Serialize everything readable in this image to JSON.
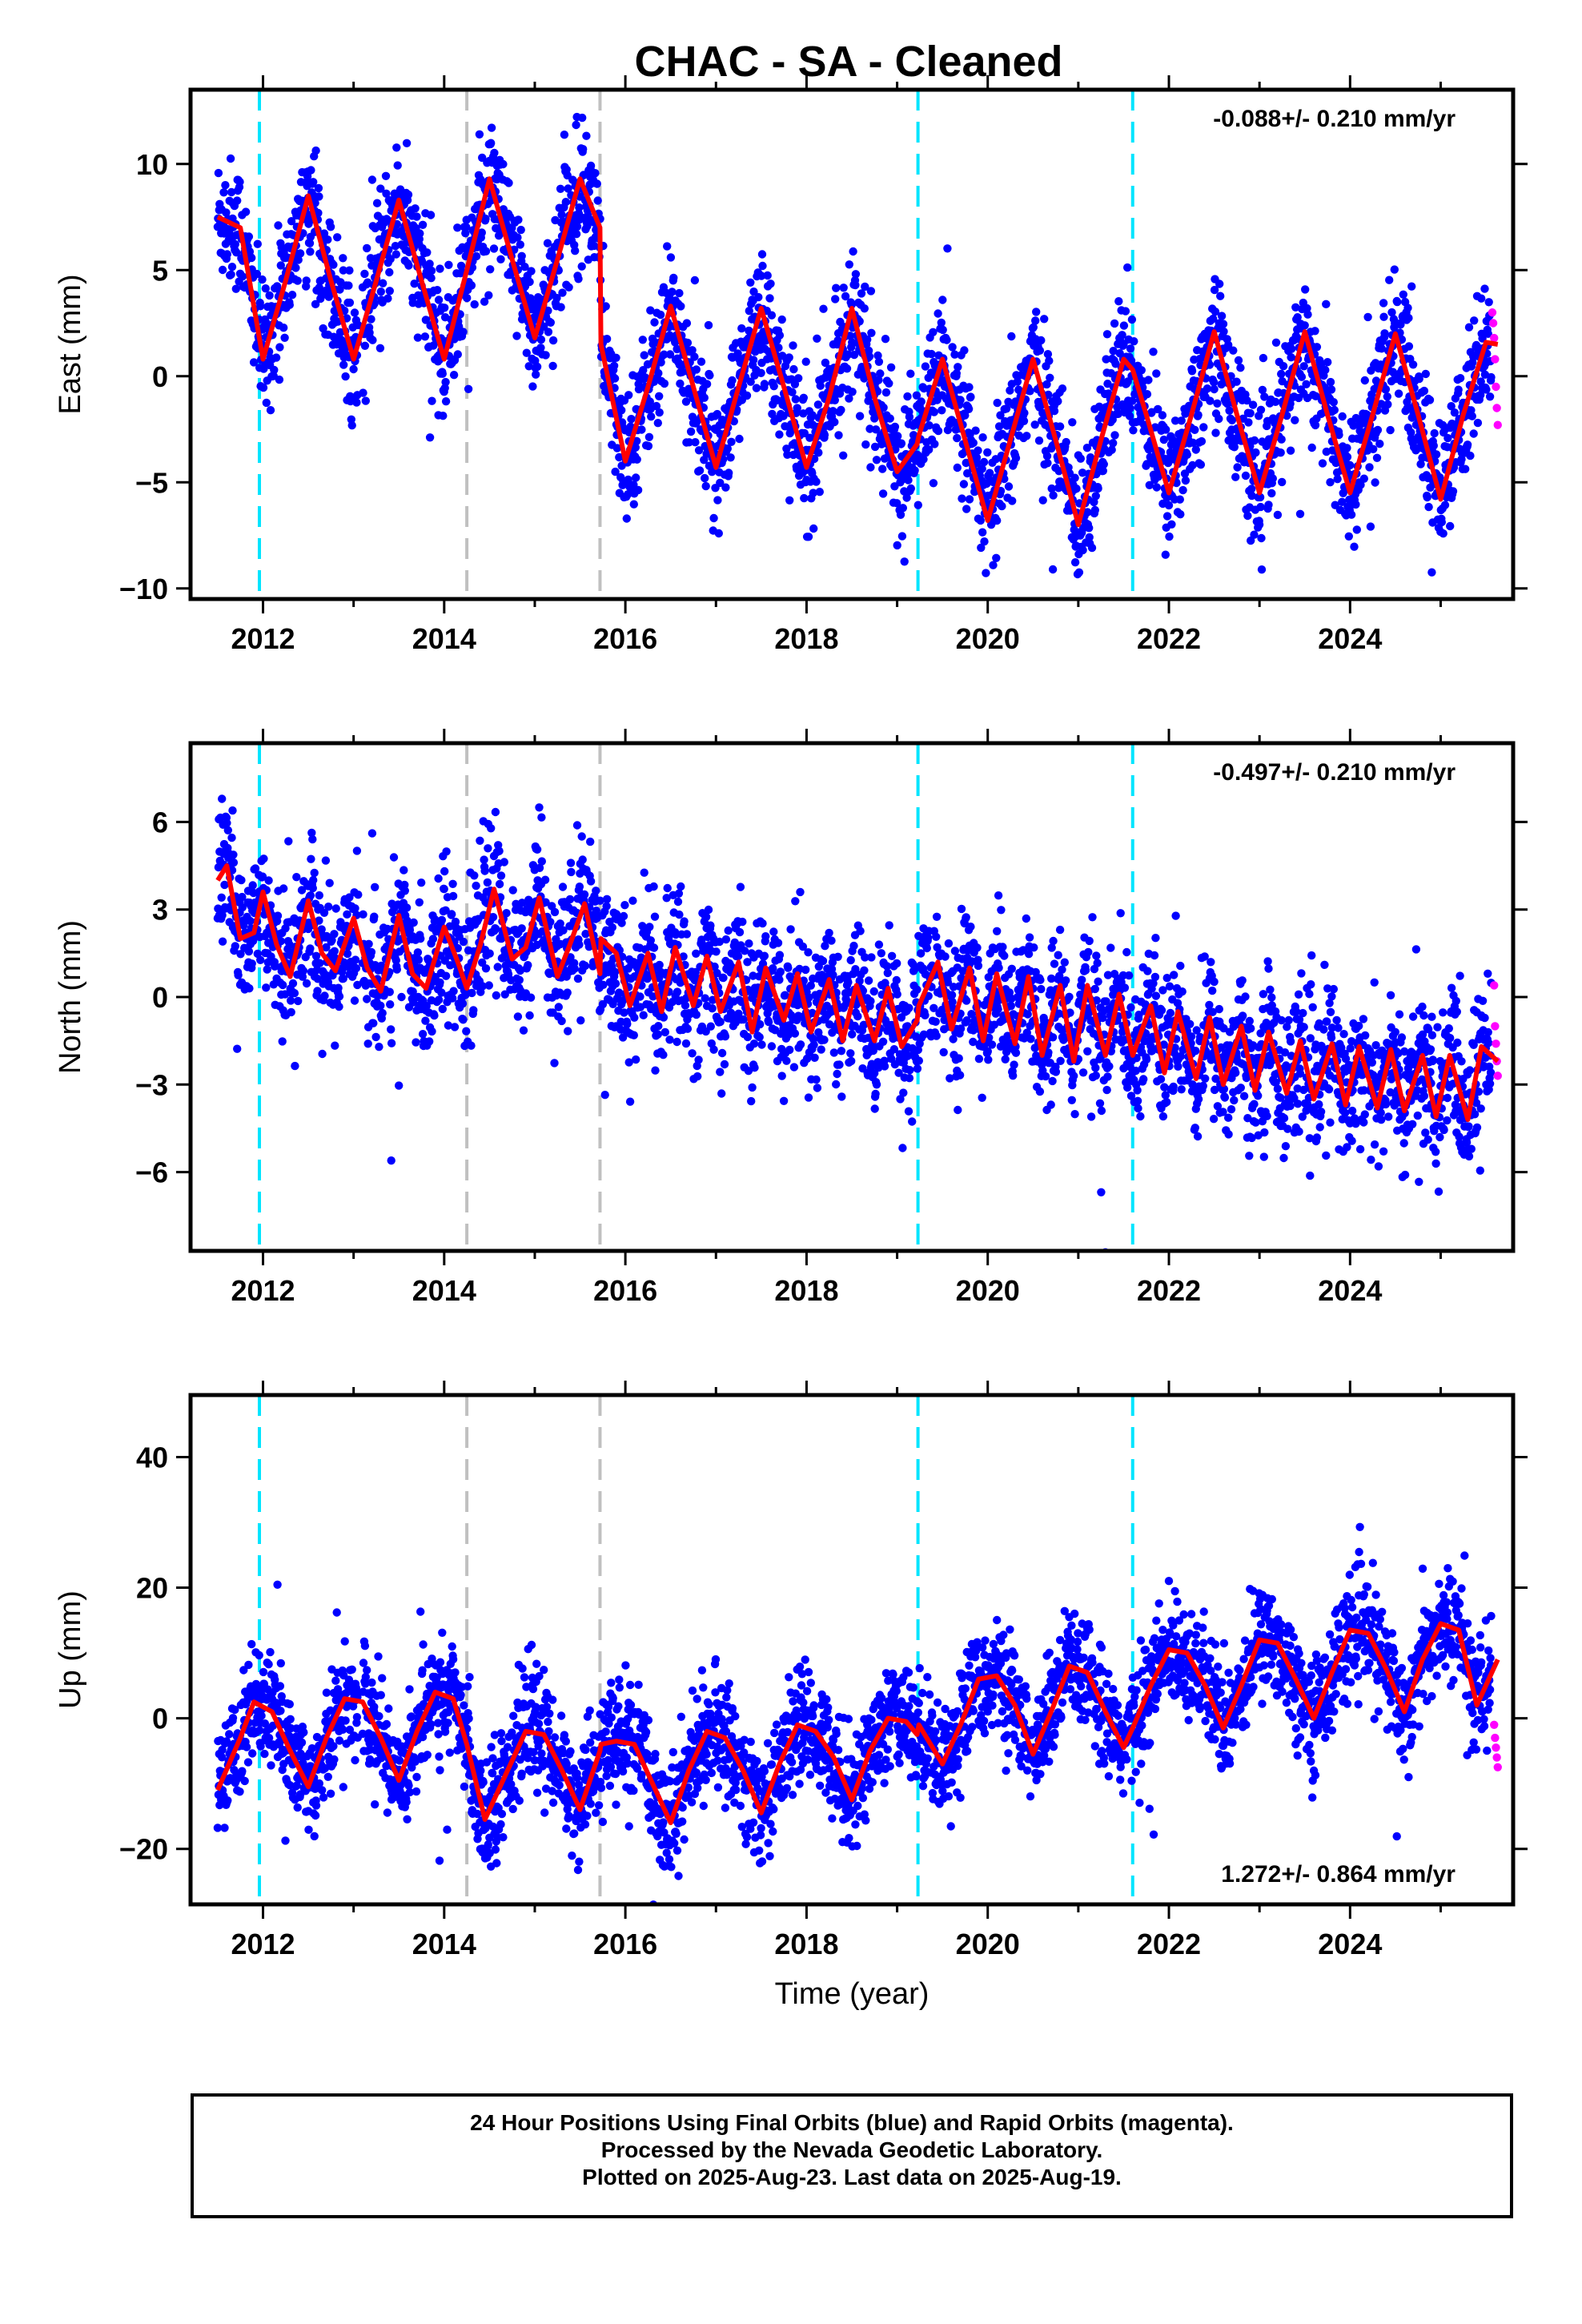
{
  "title": "CHAC  - SA - Cleaned",
  "colors": {
    "final_orbits": "#0000ff",
    "rapid_orbits": "#ff00ff",
    "model": "#ff0000",
    "equipment_change": "#00e5ff",
    "other_offset": "#c0c0c0",
    "axes": "#000000"
  },
  "footer": {
    "line1": "24 Hour Positions Using Final Orbits (blue) and Rapid Orbits (magenta).",
    "line2": "Processed by the Nevada Geodetic Laboratory.",
    "line3": "Plotted on 2025-Aug-23. Last data on 2025-Aug-19."
  },
  "chart_data": [
    {
      "type": "scatter",
      "panel": "east",
      "ylabel": "East (mm)",
      "xlabel": "",
      "xlim": [
        2011.2,
        2025.8
      ],
      "ylim": [
        -10.5,
        13.5
      ],
      "xticks": [
        2012,
        2014,
        2016,
        2018,
        2020,
        2022,
        2024
      ],
      "yticks": [
        -10,
        -5,
        0,
        5,
        10
      ],
      "velocity_label": "-0.088+/- 0.210 mm/yr",
      "velocity_label_position": "top-right",
      "cyan_dashed_lines": [
        2011.96,
        2019.23,
        2021.6
      ],
      "gray_dashed_lines": [
        2014.25,
        2015.72
      ],
      "model_curve": {
        "x": [
          2011.5,
          2011.75,
          2012.0,
          2012.25,
          2012.5,
          2012.75,
          2013.0,
          2013.25,
          2013.5,
          2013.75,
          2014.0,
          2014.25,
          2014.5,
          2014.75,
          2015.0,
          2015.25,
          2015.5,
          2015.72,
          2015.73,
          2016.0,
          2016.25,
          2016.5,
          2016.75,
          2017.0,
          2017.25,
          2017.5,
          2017.75,
          2018.0,
          2018.25,
          2018.5,
          2018.75,
          2019.0,
          2019.22,
          2019.24,
          2019.5,
          2019.75,
          2020.0,
          2020.25,
          2020.5,
          2020.75,
          2021.0,
          2021.25,
          2021.5,
          2021.6,
          2021.75,
          2022.0,
          2022.25,
          2022.5,
          2022.75,
          2023.0,
          2023.25,
          2023.5,
          2023.75,
          2024.0,
          2024.25,
          2024.5,
          2024.75,
          2025.0,
          2025.25,
          2025.5,
          2025.63
        ],
        "y": [
          7.5,
          7.0,
          0.8,
          4.5,
          8.5,
          4.5,
          0.8,
          4.5,
          8.3,
          4.5,
          0.8,
          5.0,
          9.3,
          5.5,
          1.8,
          5.5,
          9.3,
          7.0,
          1.5,
          -4.0,
          -0.5,
          3.3,
          -0.5,
          -4.3,
          -0.5,
          3.2,
          -0.5,
          -4.3,
          -1.0,
          3.2,
          -1.0,
          -4.5,
          -3.2,
          -2.8,
          0.8,
          -3.0,
          -6.8,
          -3.0,
          0.8,
          -3.0,
          -7.0,
          -3.0,
          0.8,
          0.3,
          -1.8,
          -5.5,
          -1.8,
          2.1,
          -1.8,
          -5.5,
          -1.8,
          2.1,
          -1.8,
          -5.5,
          -1.8,
          2.0,
          -1.8,
          -5.8,
          -1.8,
          1.6,
          1.5
        ]
      },
      "rapid_points": {
        "x": [
          2025.57,
          2025.58,
          2025.59,
          2025.6,
          2025.61,
          2025.62,
          2025.63
        ],
        "y": [
          3.0,
          2.5,
          1.8,
          0.8,
          -0.5,
          -1.5,
          -2.3
        ]
      }
    },
    {
      "type": "scatter",
      "panel": "north",
      "ylabel": "North (mm)",
      "xlabel": "",
      "xlim": [
        2011.2,
        2025.8
      ],
      "ylim": [
        -8.7,
        8.7
      ],
      "xticks": [
        2012,
        2014,
        2016,
        2018,
        2020,
        2022,
        2024
      ],
      "yticks": [
        -6,
        -3,
        0,
        3,
        6
      ],
      "velocity_label": "-0.497+/- 0.210 mm/yr",
      "velocity_label_position": "top-right",
      "cyan_dashed_lines": [
        2011.96,
        2019.23,
        2021.6
      ],
      "gray_dashed_lines": [
        2014.25,
        2015.72
      ],
      "model_curve": {
        "x": [
          2011.5,
          2011.6,
          2011.75,
          2011.9,
          2012.0,
          2012.15,
          2012.3,
          2012.5,
          2012.65,
          2012.8,
          2013.0,
          2013.15,
          2013.3,
          2013.5,
          2013.65,
          2013.8,
          2014.0,
          2014.15,
          2014.25,
          2014.4,
          2014.55,
          2014.75,
          2014.9,
          2015.05,
          2015.25,
          2015.4,
          2015.55,
          2015.72,
          2015.73,
          2015.9,
          2016.05,
          2016.25,
          2016.4,
          2016.55,
          2016.75,
          2016.9,
          2017.05,
          2017.25,
          2017.4,
          2017.55,
          2017.75,
          2017.9,
          2018.05,
          2018.25,
          2018.4,
          2018.55,
          2018.75,
          2018.9,
          2019.05,
          2019.22,
          2019.24,
          2019.45,
          2019.6,
          2019.8,
          2019.95,
          2020.1,
          2020.3,
          2020.45,
          2020.6,
          2020.8,
          2020.95,
          2021.1,
          2021.3,
          2021.45,
          2021.6,
          2021.8,
          2021.95,
          2022.1,
          2022.3,
          2022.45,
          2022.6,
          2022.8,
          2022.95,
          2023.1,
          2023.3,
          2023.45,
          2023.6,
          2023.8,
          2023.95,
          2024.1,
          2024.3,
          2024.45,
          2024.6,
          2024.8,
          2024.95,
          2025.1,
          2025.3,
          2025.45,
          2025.63
        ],
        "y": [
          4.0,
          4.5,
          2.0,
          2.2,
          3.6,
          1.8,
          0.7,
          3.3,
          1.5,
          0.9,
          2.7,
          1.0,
          0.2,
          2.8,
          0.8,
          0.3,
          2.4,
          1.2,
          0.3,
          1.8,
          3.7,
          1.3,
          1.7,
          3.4,
          0.7,
          1.9,
          3.2,
          0.8,
          2.0,
          1.5,
          -0.3,
          1.5,
          -0.5,
          1.7,
          -0.3,
          1.4,
          -0.5,
          1.2,
          -1.2,
          1.0,
          -0.8,
          0.8,
          -1.2,
          0.6,
          -1.5,
          0.4,
          -1.5,
          0.3,
          -1.7,
          -0.8,
          -0.3,
          1.2,
          -1.1,
          1.0,
          -1.5,
          0.8,
          -1.6,
          0.7,
          -2.0,
          0.4,
          -2.2,
          0.4,
          -2.0,
          0.1,
          -2.0,
          -0.3,
          -2.6,
          -0.5,
          -2.8,
          -0.7,
          -3.0,
          -1.0,
          -3.2,
          -1.2,
          -3.3,
          -1.5,
          -3.5,
          -1.6,
          -3.7,
          -1.7,
          -3.8,
          -1.8,
          -3.9,
          -2.0,
          -4.1,
          -2.0,
          -4.2,
          -1.7,
          -2.2
        ]
      },
      "rapid_points": {
        "x": [
          2025.59,
          2025.6,
          2025.61,
          2025.62,
          2025.63
        ],
        "y": [
          0.4,
          -1.0,
          -1.6,
          -2.2,
          -2.7
        ]
      }
    },
    {
      "type": "scatter",
      "panel": "up",
      "ylabel": "Up (mm)",
      "xlabel": "Time (year)",
      "xlim": [
        2011.2,
        2025.8
      ],
      "ylim": [
        -28.5,
        49.5
      ],
      "xticks": [
        2012,
        2014,
        2016,
        2018,
        2020,
        2022,
        2024
      ],
      "yticks": [
        -20,
        0,
        20,
        40
      ],
      "velocity_label": "1.272+/- 0.864 mm/yr",
      "velocity_label_position": "bottom-right",
      "cyan_dashed_lines": [
        2011.96,
        2019.23,
        2021.6
      ],
      "gray_dashed_lines": [
        2014.25,
        2015.72
      ],
      "model_curve": {
        "x": [
          2011.5,
          2011.75,
          2011.9,
          2012.1,
          2012.3,
          2012.5,
          2012.7,
          2012.9,
          2013.1,
          2013.3,
          2013.5,
          2013.7,
          2013.9,
          2014.1,
          2014.25,
          2014.45,
          2014.7,
          2014.9,
          2015.1,
          2015.3,
          2015.5,
          2015.72,
          2015.73,
          2015.9,
          2016.1,
          2016.3,
          2016.5,
          2016.7,
          2016.9,
          2017.1,
          2017.3,
          2017.5,
          2017.7,
          2017.9,
          2018.1,
          2018.3,
          2018.5,
          2018.7,
          2018.9,
          2019.1,
          2019.22,
          2019.24,
          2019.5,
          2019.7,
          2019.9,
          2020.1,
          2020.3,
          2020.5,
          2020.7,
          2020.9,
          2021.1,
          2021.3,
          2021.5,
          2021.6,
          2021.8,
          2022.0,
          2022.2,
          2022.4,
          2022.6,
          2022.8,
          2023.0,
          2023.2,
          2023.4,
          2023.6,
          2023.8,
          2024.0,
          2024.2,
          2024.4,
          2024.6,
          2024.8,
          2025.0,
          2025.2,
          2025.4,
          2025.63
        ],
        "y": [
          -11.0,
          -3.0,
          2.5,
          1.0,
          -5.0,
          -10.5,
          -3.0,
          3.0,
          2.5,
          -3.0,
          -9.5,
          -2.0,
          4.0,
          3.0,
          -4.0,
          -15.5,
          -8.0,
          -2.0,
          -2.5,
          -8.0,
          -14.0,
          -5.0,
          -4.0,
          -3.5,
          -4.0,
          -10.0,
          -16.0,
          -8.0,
          -2.0,
          -3.0,
          -8.0,
          -14.5,
          -7.0,
          -1.0,
          -2.0,
          -6.0,
          -12.5,
          -5.0,
          0.0,
          -0.5,
          -2.5,
          -1.0,
          -7.0,
          -1.0,
          6.0,
          6.5,
          2.0,
          -5.5,
          1.0,
          8.0,
          7.0,
          1.0,
          -4.5,
          -1.5,
          5.0,
          10.5,
          10.0,
          5.0,
          -1.5,
          5.0,
          12.0,
          11.5,
          6.0,
          0.0,
          7.0,
          13.5,
          13.0,
          7.5,
          1.0,
          9.0,
          14.5,
          13.5,
          2.0,
          9.0
        ]
      },
      "rapid_points": {
        "x": [
          2025.59,
          2025.6,
          2025.61,
          2025.62,
          2025.63
        ],
        "y": [
          -1.0,
          -3.0,
          -4.5,
          -6.0,
          -7.5
        ]
      }
    }
  ]
}
